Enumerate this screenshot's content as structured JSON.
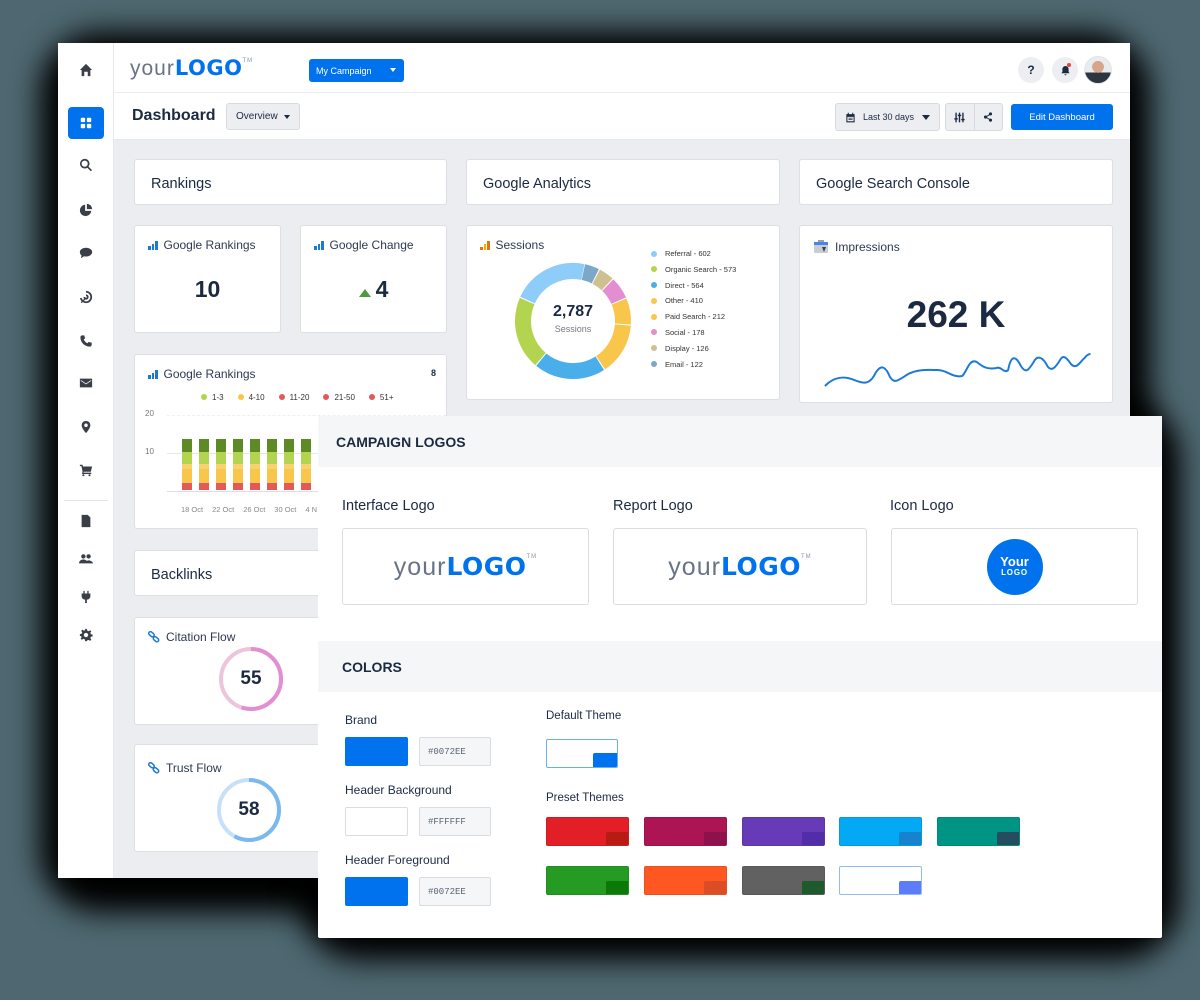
{
  "topbar": {
    "logo_text_light": "your",
    "logo_text_bold": "LOGO",
    "logo_tm": "TM",
    "campaign_select": "My Campaign",
    "help_label": "?"
  },
  "sidebar": {
    "items": [
      {
        "name": "home",
        "icon": "home-icon"
      },
      {
        "name": "dashboard",
        "icon": "grid-icon",
        "active": true
      },
      {
        "name": "search",
        "icon": "search-icon"
      },
      {
        "name": "analytics",
        "icon": "pie-chart-icon"
      },
      {
        "name": "chat",
        "icon": "chat-bubble-icon"
      },
      {
        "name": "ppc",
        "icon": "target-icon"
      },
      {
        "name": "calls",
        "icon": "phone-icon"
      },
      {
        "name": "email",
        "icon": "envelope-icon"
      },
      {
        "name": "local",
        "icon": "map-pin-icon"
      },
      {
        "name": "ecommerce",
        "icon": "cart-icon"
      },
      {
        "name": "reports",
        "icon": "document-icon"
      },
      {
        "name": "users",
        "icon": "users-icon"
      },
      {
        "name": "integrations",
        "icon": "plug-icon"
      },
      {
        "name": "settings",
        "icon": "gear-icon"
      }
    ]
  },
  "subbar": {
    "title": "Dashboard",
    "view_select": "Overview",
    "date_range": "Last 30 days",
    "edit_button": "Edit Dashboard"
  },
  "sections": {
    "rankings": "Rankings",
    "analytics": "Google Analytics",
    "search_console": "Google Search Console",
    "backlinks": "Backlinks"
  },
  "widgets": {
    "google_rankings": {
      "label": "Google Rankings",
      "value": "10"
    },
    "google_change": {
      "label": "Google Change",
      "value": "4",
      "trend": "up"
    },
    "rankings_chart": {
      "label": "Google Rankings",
      "count": "8"
    },
    "sessions": {
      "label": "Sessions",
      "total": "2,787",
      "total_label": "Sessions"
    },
    "impressions": {
      "label": "Impressions",
      "value": "262 K"
    },
    "citation_flow": {
      "label": "Citation Flow",
      "value": "55"
    },
    "trust_flow": {
      "label": "Trust Flow",
      "value": "58"
    }
  },
  "sessions_legend": [
    {
      "label": "Referral - 602",
      "color": "#8ecdf9"
    },
    {
      "label": "Organic Search - 573",
      "color": "#b3d44f"
    },
    {
      "label": "Direct - 564",
      "color": "#4aaeea"
    },
    {
      "label": "Other - 410",
      "color": "#f7c64a"
    },
    {
      "label": "Paid Search - 212",
      "color": "#f7c64a"
    },
    {
      "label": "Social - 178",
      "color": "#e28ed0"
    },
    {
      "label": "Display - 126",
      "color": "#cfc08f"
    },
    {
      "label": "Email - 122",
      "color": "#7da7c9"
    }
  ],
  "rankings_legend": [
    {
      "label": "1-3",
      "color": "#b3d44f"
    },
    {
      "label": "4-10",
      "color": "#f7c64a"
    },
    {
      "label": "11-20",
      "color": "#e05a5a"
    },
    {
      "label": "21-50",
      "color": "#e05a5a"
    },
    {
      "label": "51+",
      "color": "#e05a5a"
    }
  ],
  "rankings_axis": {
    "y_ticks": [
      "20",
      "10"
    ],
    "x_ticks": [
      "18 Oct",
      "22 Oct",
      "26 Oct",
      "30 Oct",
      "4 N"
    ]
  },
  "overlay": {
    "logos_title": "CAMPAIGN LOGOS",
    "interface_logo_label": "Interface Logo",
    "report_logo_label": "Report Logo",
    "icon_logo_label": "Icon Logo",
    "icon_logo_line1": "Your",
    "icon_logo_line2": "LOGO",
    "colors_title": "COLORS",
    "brand_label": "Brand",
    "brand_hex": "#0072EE",
    "header_bg_label": "Header Background",
    "header_bg_hex": "#FFFFFF",
    "header_fg_label": "Header Foreground",
    "header_fg_hex": "#0072EE",
    "default_theme_label": "Default Theme",
    "preset_themes_label": "Preset Themes",
    "default_theme": {
      "bg": "#ffffff",
      "accent": "#0072ee",
      "border": "#6aaef0"
    },
    "presets": [
      {
        "bg": "#e21e26",
        "accent": "#b81a14"
      },
      {
        "bg": "#ad1453",
        "accent": "#8d114a"
      },
      {
        "bg": "#673ab7",
        "accent": "#512da8"
      },
      {
        "bg": "#03a9f4",
        "accent": "#1683cc"
      },
      {
        "bg": "#009485",
        "accent": "#254d5e"
      },
      {
        "bg": "#259b24",
        "accent": "#0b7808"
      },
      {
        "bg": "#ff5722",
        "accent": "#dc4c25"
      },
      {
        "bg": "#616161",
        "accent": "#1e5a2b"
      },
      {
        "bg": "#ffffff",
        "accent": "#5c7cfa"
      }
    ]
  }
}
